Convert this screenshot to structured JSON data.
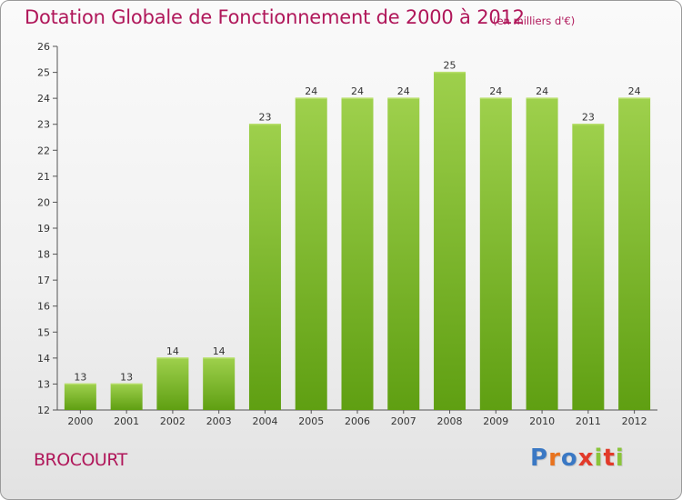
{
  "title": "Dotation Globale de Fonctionnement de 2000 à 2012",
  "unit_note": "(en milliers d'€)",
  "place": "BROCOURT",
  "logo": {
    "text": "Proxiti",
    "letter_colors": [
      "#3a78c4",
      "#e8731e",
      "#3a78c4",
      "#e23a2a",
      "#8ac43a",
      "#e23a2a",
      "#8ac43a"
    ]
  },
  "colors": {
    "title": "#b0175a",
    "bar_light": "#9ed04c",
    "bar_dark": "#5f9f12",
    "axis": "#555555"
  },
  "chart_data": {
    "type": "bar",
    "categories": [
      "2000",
      "2001",
      "2002",
      "2003",
      "2004",
      "2005",
      "2006",
      "2007",
      "2008",
      "2009",
      "2010",
      "2011",
      "2012"
    ],
    "values": [
      13,
      13,
      14,
      14,
      23,
      24,
      24,
      24,
      25,
      24,
      24,
      23,
      24
    ],
    "data_labels": [
      "13",
      "13",
      "14",
      "14",
      "23",
      "24",
      "24",
      "24",
      "25",
      "24",
      "24",
      "23",
      "24"
    ],
    "title": "Dotation Globale de Fonctionnement de 2000 à 2012",
    "xlabel": "",
    "ylabel": "",
    "ylim": [
      12,
      26
    ],
    "yticks": [
      12,
      13,
      14,
      15,
      16,
      17,
      18,
      19,
      20,
      21,
      22,
      23,
      24,
      25,
      26
    ],
    "grid": false,
    "legend": "none"
  }
}
